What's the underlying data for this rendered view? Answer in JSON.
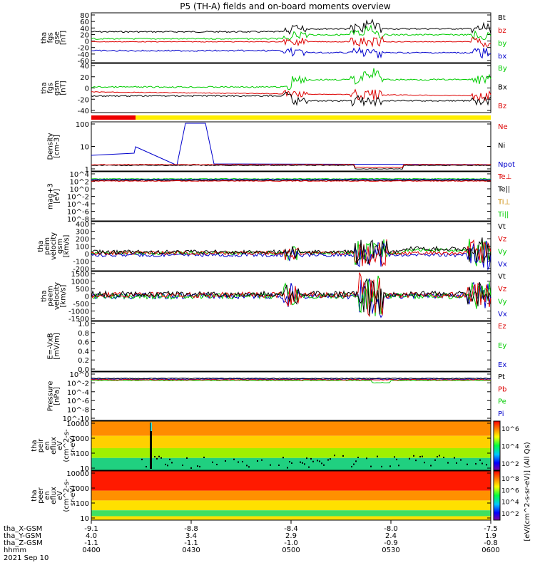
{
  "title": "P5 (TH-A) fields and on-board moments overview",
  "date": "2021 Sep 10",
  "xlabel_rows": [
    {
      "label": "tha_X-GSM",
      "values": [
        "-9.1",
        "-8.8",
        "-8.4",
        "-8.0",
        "-7.5"
      ]
    },
    {
      "label": "tha_Y-GSM",
      "values": [
        "4.0",
        "3.4",
        "2.9",
        "2.4",
        "1.9"
      ]
    },
    {
      "label": "tha_Z-GSM",
      "values": [
        "-1.1",
        "-1.1",
        "-1.0",
        "-0.9",
        "-0.8"
      ]
    },
    {
      "label": "hhmm",
      "values": [
        "0400",
        "0430",
        "0500",
        "0530",
        "0600"
      ]
    }
  ],
  "colorbar": {
    "label": "[eV/(cm^2-s-sr-eV)] (All Qs)",
    "top_ticks": [
      "10^6",
      "10^4",
      "10^2"
    ],
    "bottom_ticks": [
      "10^8",
      "10^6",
      "10^4",
      "10^2"
    ]
  },
  "panels": [
    {
      "id": "fgs-gse",
      "ylabel": [
        "tha",
        "fgs",
        "gse",
        "[nT]"
      ],
      "ticks": [
        "80",
        "60",
        "40",
        "20",
        "0",
        "-20",
        "-40",
        "-60"
      ],
      "legend": [
        {
          "t": "Bt",
          "c": "#000000"
        },
        {
          "t": "bz",
          "c": "#dd0000"
        },
        {
          "t": "by",
          "c": "#00cc00"
        },
        {
          "t": "bx",
          "c": "#0000cc"
        }
      ]
    },
    {
      "id": "fgs-gsm",
      "ylabel": [
        "tha",
        "fgs",
        "gsm",
        "[nT]"
      ],
      "ticks": [
        "40",
        "20",
        "0",
        "-20",
        "-40"
      ],
      "legend": [
        {
          "t": "By",
          "c": "#00cc00"
        },
        {
          "t": "Bx",
          "c": "#000000"
        },
        {
          "t": "Bz",
          "c": "#dd0000"
        }
      ]
    },
    {
      "id": "density",
      "ylabel": [
        "Density",
        "[cm-3]"
      ],
      "ticks": [
        "100",
        "10",
        "1"
      ],
      "legend": [
        {
          "t": "Ne",
          "c": "#dd0000"
        },
        {
          "t": "Ni",
          "c": "#000000"
        },
        {
          "t": "Npot",
          "c": "#0000cc"
        }
      ]
    },
    {
      "id": "temp",
      "ylabel": [
        "mag+3",
        "[eV]"
      ],
      "ticks": [
        "10^4",
        "10^2",
        "10^0",
        "10^-2",
        "10^-4",
        "10^-6",
        "10^-8"
      ],
      "legend": [
        {
          "t": "Te⊥",
          "c": "#dd0000"
        },
        {
          "t": "Te||",
          "c": "#000000"
        },
        {
          "t": "Ti⊥",
          "c": "#cc8800"
        },
        {
          "t": "Ti||",
          "c": "#00cc00"
        }
      ]
    },
    {
      "id": "vel-esa",
      "ylabel": [
        "tha",
        "peim",
        "velocity",
        "gsm",
        "[km/s]"
      ],
      "ticks": [
        "400",
        "300",
        "200",
        "100",
        "0",
        "-100",
        "-200"
      ],
      "legend": [
        {
          "t": "Vt",
          "c": "#000000"
        },
        {
          "t": "Vz",
          "c": "#dd0000"
        },
        {
          "t": "Vy",
          "c": "#00cc00"
        },
        {
          "t": "Vx",
          "c": "#0000cc"
        }
      ]
    },
    {
      "id": "vel-sst",
      "ylabel": [
        "tha",
        "peem",
        "velocity",
        "[km/s]"
      ],
      "ticks": [
        "1500",
        "1000",
        "500",
        "0",
        "-500",
        "-1000",
        "-1500"
      ],
      "legend": [
        {
          "t": "Vt",
          "c": "#000000"
        },
        {
          "t": "Vz",
          "c": "#dd0000"
        },
        {
          "t": "Vy",
          "c": "#00cc00"
        },
        {
          "t": "Vx",
          "c": "#0000cc"
        }
      ]
    },
    {
      "id": "efield",
      "ylabel": [
        "E=-VxB",
        "[mV/m]"
      ],
      "ticks": [
        "1.0",
        "0.8",
        "0.6",
        "0.4",
        "0.2",
        "0.0"
      ],
      "legend": [
        {
          "t": "Ez",
          "c": "#dd0000"
        },
        {
          "t": "Ey",
          "c": "#00cc00"
        },
        {
          "t": "Ex",
          "c": "#0000cc"
        }
      ]
    },
    {
      "id": "pressure",
      "ylabel": [
        "Pressure",
        "[nPa]"
      ],
      "ticks": [
        "10^0",
        "10^-2",
        "10^-4",
        "10^-6",
        "10^-8",
        "10^-10"
      ],
      "legend": [
        {
          "t": "Pt",
          "c": "#000000"
        },
        {
          "t": "Pb",
          "c": "#dd0000"
        },
        {
          "t": "Pe",
          "c": "#00cc00"
        },
        {
          "t": "Pi",
          "c": "#0000cc"
        }
      ]
    },
    {
      "id": "peir-spec",
      "ylabel": [
        "tha",
        "peir",
        "en",
        "eflux",
        "eV",
        "(cm^2-s-",
        "sr-eV)"
      ],
      "ticks": [
        "10000",
        "1000",
        "100",
        "10"
      ],
      "legend": []
    },
    {
      "id": "peer-spec",
      "ylabel": [
        "tha",
        "peer",
        "en",
        "eflux",
        "eV",
        "(cm^2-s-",
        "sr-eV)"
      ],
      "ticks": [
        "10000",
        "1000",
        "100",
        "10"
      ],
      "legend": []
    }
  ],
  "chart_data": {
    "type": "line",
    "title": "P5 (TH-A) fields and on-board moments overview",
    "x_ticks": [
      "0400",
      "0430",
      "0500",
      "0530",
      "0600"
    ],
    "series_approx": {
      "fgs_gse": {
        "Bt": [
          25,
          27,
          30,
          38,
          30,
          45,
          35,
          30,
          48
        ],
        "bz": [
          8,
          8,
          8,
          10,
          8,
          12,
          8,
          8,
          10
        ],
        "by": [
          10,
          12,
          15,
          22,
          20,
          28,
          22,
          18,
          30
        ],
        "bx": [
          -18,
          -20,
          -22,
          -25,
          -22,
          -30,
          -28,
          -25,
          -30
        ]
      },
      "density": {
        "Npot_early": [
          2,
          3,
          8
        ],
        "Ne": [
          0.4,
          0.4,
          0.4,
          0.3,
          0.4
        ],
        "Ni": [
          0.4,
          0.4,
          0.4,
          0.3,
          0.4
        ]
      }
    }
  }
}
